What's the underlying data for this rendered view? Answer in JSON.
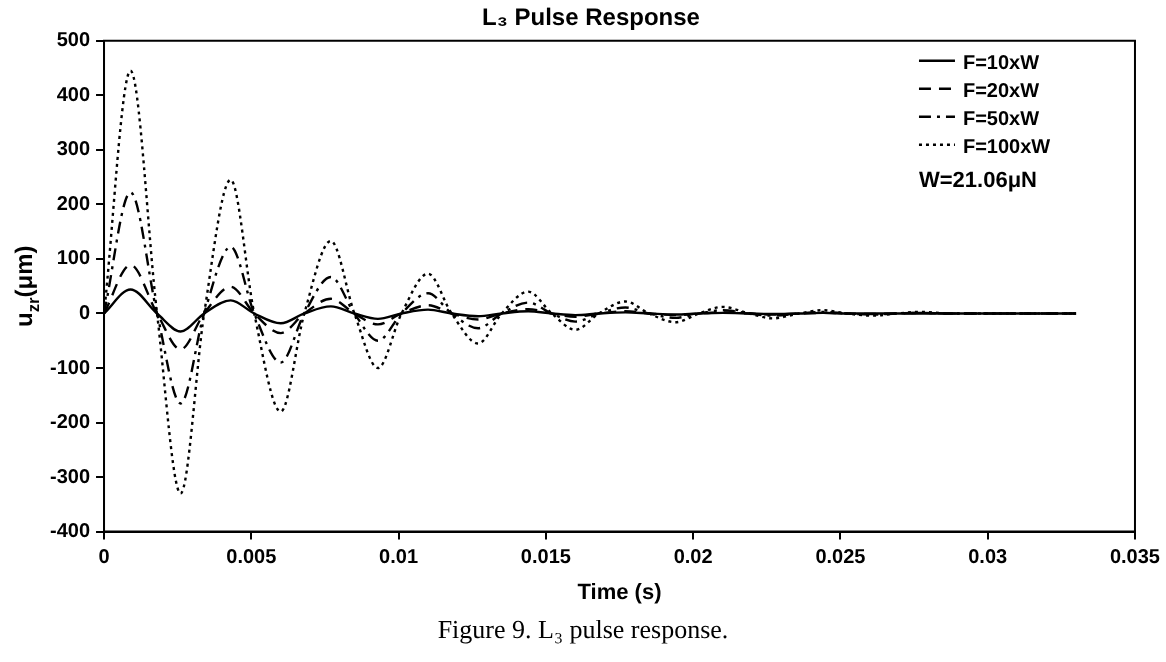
{
  "chart_data": {
    "type": "line",
    "title": "L₃ Pulse Response",
    "xlabel": "Time (s)",
    "ylabel": "u$_{zr}$(μm)",
    "annotations": [
      "W=21.06μN",
      "Figure 9. L₃ pulse response."
    ],
    "x": [
      0,
      0.0009,
      0.0018,
      0.0026,
      0.0034,
      0.0043,
      0.0051,
      0.006,
      0.0068,
      0.0077,
      0.0085,
      0.0093,
      0.0101,
      0.011,
      0.0118,
      0.0127,
      0.0135,
      0.0144,
      0.0152,
      0.016,
      0.0168,
      0.0177,
      0.0185,
      0.0194,
      0.0202,
      0.021,
      0.0219,
      0.0227,
      0.0236,
      0.0244,
      0.0252,
      0.0261,
      0.0269,
      0.0278,
      0.0286,
      0.033
    ],
    "series": [
      {
        "name": "F=10xW",
        "color": "#000000",
        "line_style": "solid",
        "values": [
          0,
          44,
          0,
          -33,
          0,
          24,
          0,
          -18,
          0,
          13,
          0,
          -10,
          0,
          7,
          0,
          -5,
          0,
          4,
          0,
          -3,
          0,
          2,
          0,
          -2,
          0,
          1,
          0,
          -1,
          0,
          1,
          0,
          0,
          0,
          0,
          0,
          0
        ]
      },
      {
        "name": "F=20xW",
        "color": "#000000",
        "line_style": "dashed",
        "values": [
          0,
          89,
          0,
          -66,
          0,
          49,
          0,
          -36,
          0,
          27,
          0,
          -20,
          0,
          15,
          0,
          -11,
          0,
          8,
          0,
          -6,
          0,
          4,
          0,
          -3,
          0,
          2,
          0,
          -2,
          0,
          1,
          0,
          -1,
          0,
          1,
          0,
          0
        ]
      },
      {
        "name": "F=50xW",
        "color": "#000000",
        "line_style": "dashdot",
        "values": [
          0,
          222,
          0,
          -165,
          0,
          122,
          0,
          -90,
          0,
          67,
          0,
          -50,
          0,
          37,
          0,
          -27,
          0,
          20,
          0,
          -15,
          0,
          11,
          0,
          -8,
          0,
          6,
          0,
          -4,
          0,
          3,
          0,
          -2,
          0,
          1,
          0,
          0
        ]
      },
      {
        "name": "F=100xW",
        "color": "#000000",
        "line_style": "dotted",
        "values": [
          0,
          445,
          0,
          -330,
          0,
          245,
          0,
          -180,
          0,
          133,
          0,
          -100,
          0,
          73,
          0,
          -55,
          0,
          40,
          0,
          -30,
          0,
          22,
          0,
          -16,
          0,
          12,
          0,
          -9,
          0,
          6,
          0,
          -4,
          0,
          3,
          0,
          0
        ]
      }
    ],
    "xlim": [
      0,
      0.035
    ],
    "xticks": [
      0,
      0.005,
      0.01,
      0.015,
      0.02,
      0.025,
      0.03,
      0.035
    ],
    "ylim": [
      -400,
      500
    ],
    "yticks": [
      -400,
      -300,
      -200,
      -100,
      0,
      100,
      200,
      300,
      400,
      500
    ],
    "grid": false,
    "legend": "top right",
    "marker": "none"
  }
}
